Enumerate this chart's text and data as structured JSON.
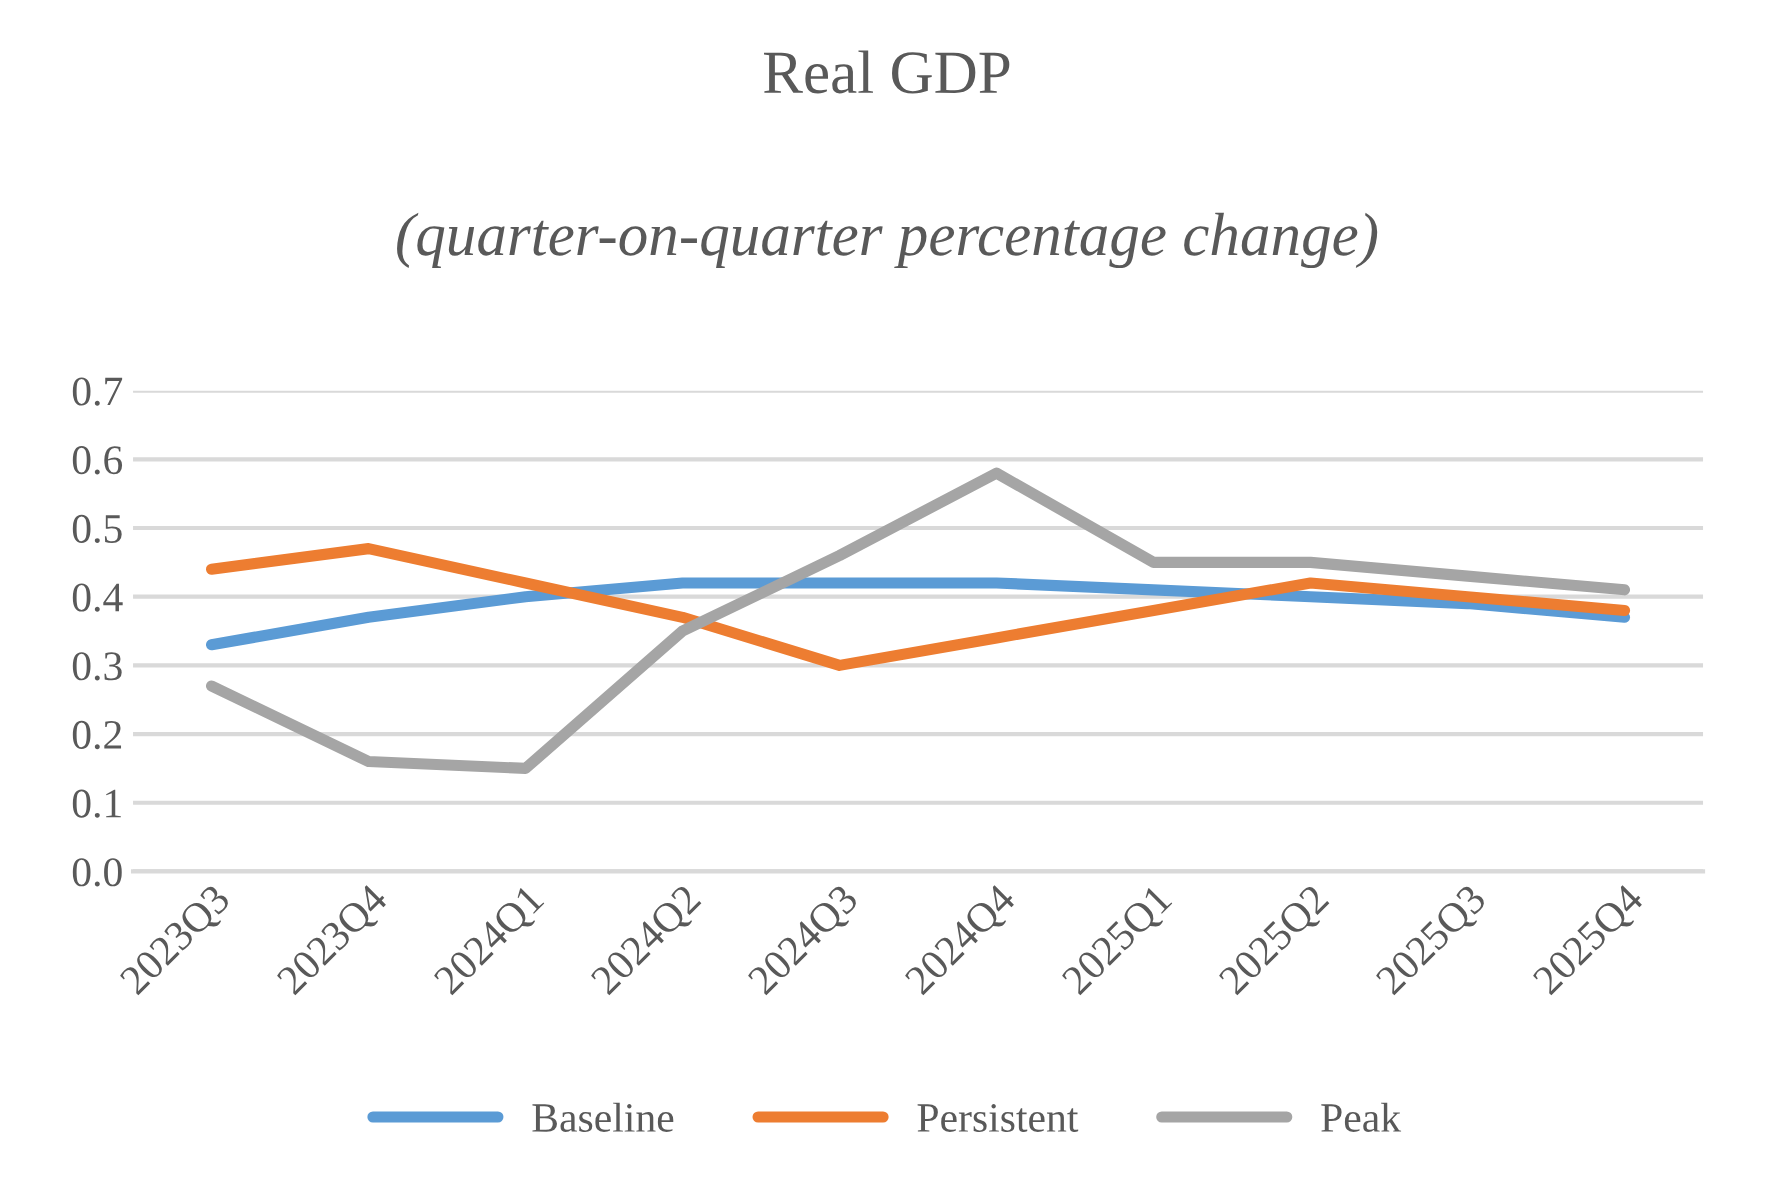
{
  "chart_data": {
    "type": "line",
    "title": "Real GDP",
    "subtitle": "(quarter-on-quarter percentage change)",
    "categories": [
      "2023Q3",
      "2023Q4",
      "2024Q1",
      "2024Q2",
      "2024Q3",
      "2024Q4",
      "2025Q1",
      "2025Q2",
      "2025Q3",
      "2025Q4"
    ],
    "series": [
      {
        "name": "Baseline",
        "color": "#5b9bd5",
        "values": [
          0.33,
          0.37,
          0.4,
          0.42,
          0.42,
          0.42,
          0.41,
          0.4,
          0.39,
          0.37
        ]
      },
      {
        "name": "Persistent",
        "color": "#ed7d31",
        "values": [
          0.44,
          0.47,
          0.42,
          0.37,
          0.3,
          0.34,
          0.38,
          0.42,
          0.4,
          0.38
        ]
      },
      {
        "name": "Peak",
        "color": "#a5a5a5",
        "values": [
          0.27,
          0.16,
          0.15,
          0.35,
          0.46,
          0.58,
          0.45,
          0.45,
          0.43,
          0.41
        ]
      }
    ],
    "ylim": [
      0,
      0.7
    ],
    "yticks": [
      {
        "value": 0,
        "label": "0.0"
      },
      0.1,
      0.2,
      0.3,
      0.4,
      0.5,
      0.6,
      0.7
    ],
    "grid": "y",
    "legend": "bottom",
    "marker": "none",
    "line_style": "solid"
  }
}
